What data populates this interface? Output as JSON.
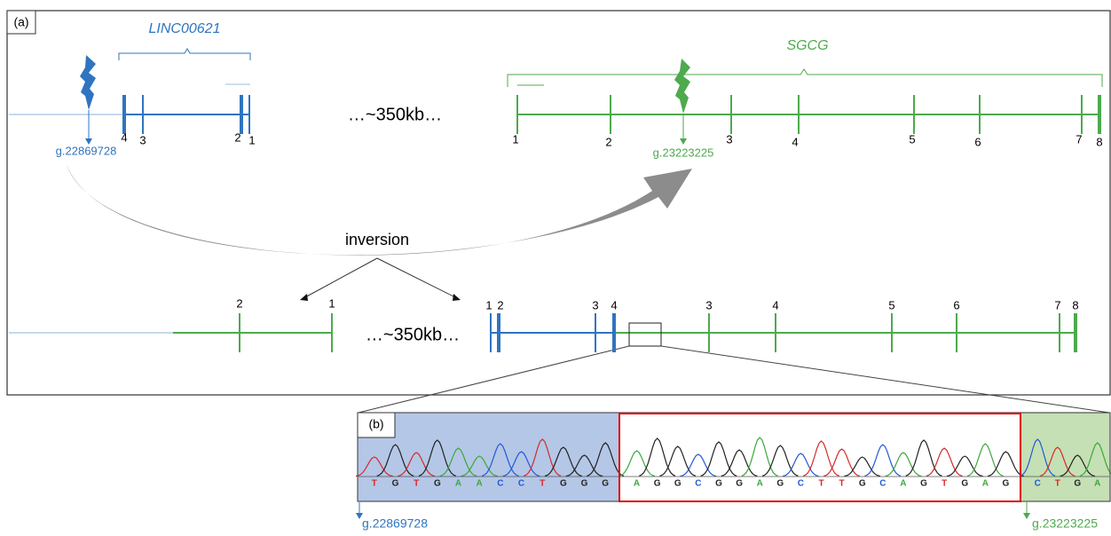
{
  "panel_a": {
    "label": "(a)",
    "top": {
      "linc": {
        "name": "LINC00621",
        "breakpoint": "g.22869728",
        "exons": [
          "4",
          "3",
          "2",
          "1"
        ]
      },
      "gap": "…~350kb…",
      "sgcg": {
        "name": "SGCG",
        "breakpoint": "g.23223225",
        "exons": [
          "1",
          "2",
          "3",
          "4",
          "5",
          "6",
          "7",
          "8"
        ]
      }
    },
    "event": "inversion",
    "bottom": {
      "left_exons": [
        "2",
        "1"
      ],
      "gap": "…~350kb…",
      "right_exons": [
        "1",
        "2",
        "3",
        "4",
        "3",
        "4",
        "5",
        "6",
        "7",
        "8"
      ]
    }
  },
  "panel_b": {
    "label": "(b)",
    "bases_blue": [
      "T",
      "G",
      "T",
      "G",
      "A",
      "A",
      "C",
      "C",
      "T",
      "G",
      "G",
      "G"
    ],
    "bases_red": [
      "A",
      "G",
      "G",
      "C",
      "G",
      "G",
      "A",
      "G",
      "C",
      "T",
      "T",
      "G",
      "C",
      "A",
      "G",
      "T",
      "G",
      "A",
      "G"
    ],
    "bases_green": [
      "C",
      "T",
      "G",
      "A"
    ],
    "left_breakpoint": "g.22869728",
    "right_breakpoint": "g.23223225"
  }
}
